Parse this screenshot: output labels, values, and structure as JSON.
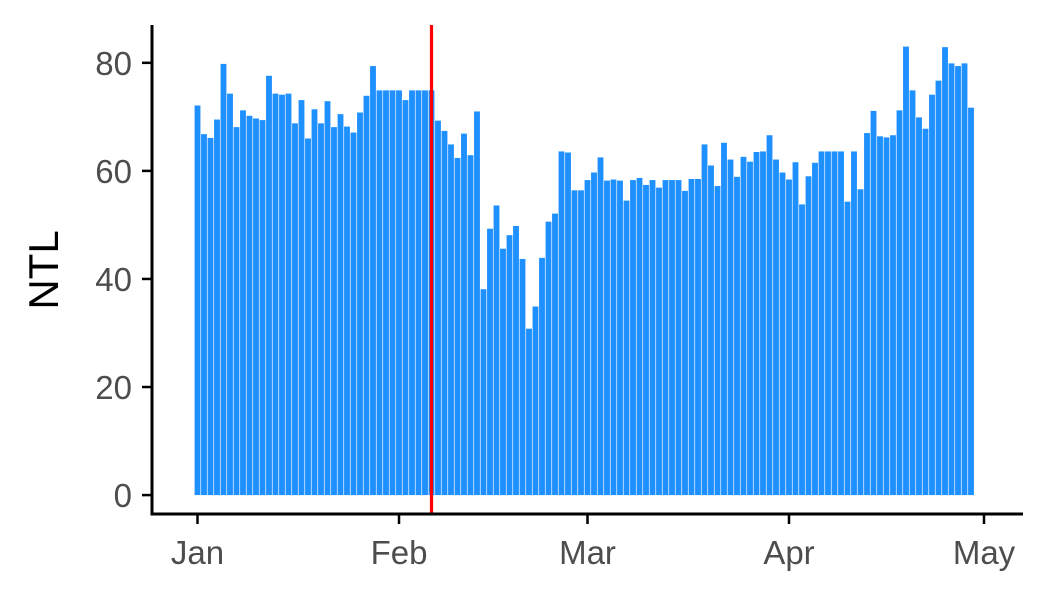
{
  "chart_data": {
    "type": "bar",
    "ylabel": "NTL",
    "xlabel": "",
    "bar_color": "#1e90ff",
    "marker_color": "#ff0000",
    "axis_color": "#000000",
    "x_start": "2020-01-01",
    "x_end": "2020-05-01",
    "xlim": [
      "2019-12-25",
      "2020-05-07"
    ],
    "ylim": [
      -3.5,
      87
    ],
    "y_ticks": [
      0,
      20,
      40,
      60,
      80
    ],
    "x_ticks": [
      {
        "date": "2020-01-01",
        "label": "Jan"
      },
      {
        "date": "2020-02-01",
        "label": "Feb"
      },
      {
        "date": "2020-03-01",
        "label": "Mar"
      },
      {
        "date": "2020-04-01",
        "label": "Apr"
      },
      {
        "date": "2020-05-01",
        "label": "May"
      }
    ],
    "vline_date": "2020-02-06",
    "values": [
      72.1,
      66.8,
      66.1,
      69.5,
      79.8,
      74.3,
      68.1,
      71.2,
      70.2,
      69.7,
      69.4,
      77.6,
      74.3,
      74.1,
      74.3,
      68.8,
      73.1,
      66.0,
      71.4,
      68.8,
      72.9,
      68.1,
      70.5,
      68.2,
      67.1,
      70.8,
      73.9,
      79.4,
      74.9,
      74.9,
      74.9,
      74.9,
      73.1,
      74.9,
      74.9,
      74.9,
      74.9,
      69.3,
      67.4,
      64.9,
      62.4,
      66.9,
      62.9,
      71.0,
      38.1,
      49.3,
      53.6,
      45.6,
      48.1,
      49.8,
      43.7,
      30.8,
      34.9,
      43.9,
      50.6,
      52.1,
      63.6,
      63.4,
      56.4,
      56.4,
      58.3,
      59.7,
      62.5,
      58.2,
      58.4,
      58.2,
      54.5,
      58.3,
      58.7,
      57.4,
      58.3,
      56.9,
      58.3,
      58.3,
      58.3,
      56.3,
      58.5,
      58.5,
      64.9,
      61.0,
      57.2,
      65.2,
      62.1,
      58.9,
      62.6,
      61.7,
      63.5,
      63.6,
      66.6,
      62.1,
      59.7,
      58.4,
      61.6,
      53.8,
      59.0,
      61.5,
      63.6,
      63.6,
      63.6,
      63.6,
      54.3,
      63.6,
      56.6,
      67.0,
      71.1,
      66.4,
      66.2,
      66.6,
      71.2,
      83.0,
      74.9,
      69.9,
      67.8,
      74.1,
      76.7,
      82.9,
      79.9,
      79.4,
      79.9,
      71.7
    ]
  }
}
